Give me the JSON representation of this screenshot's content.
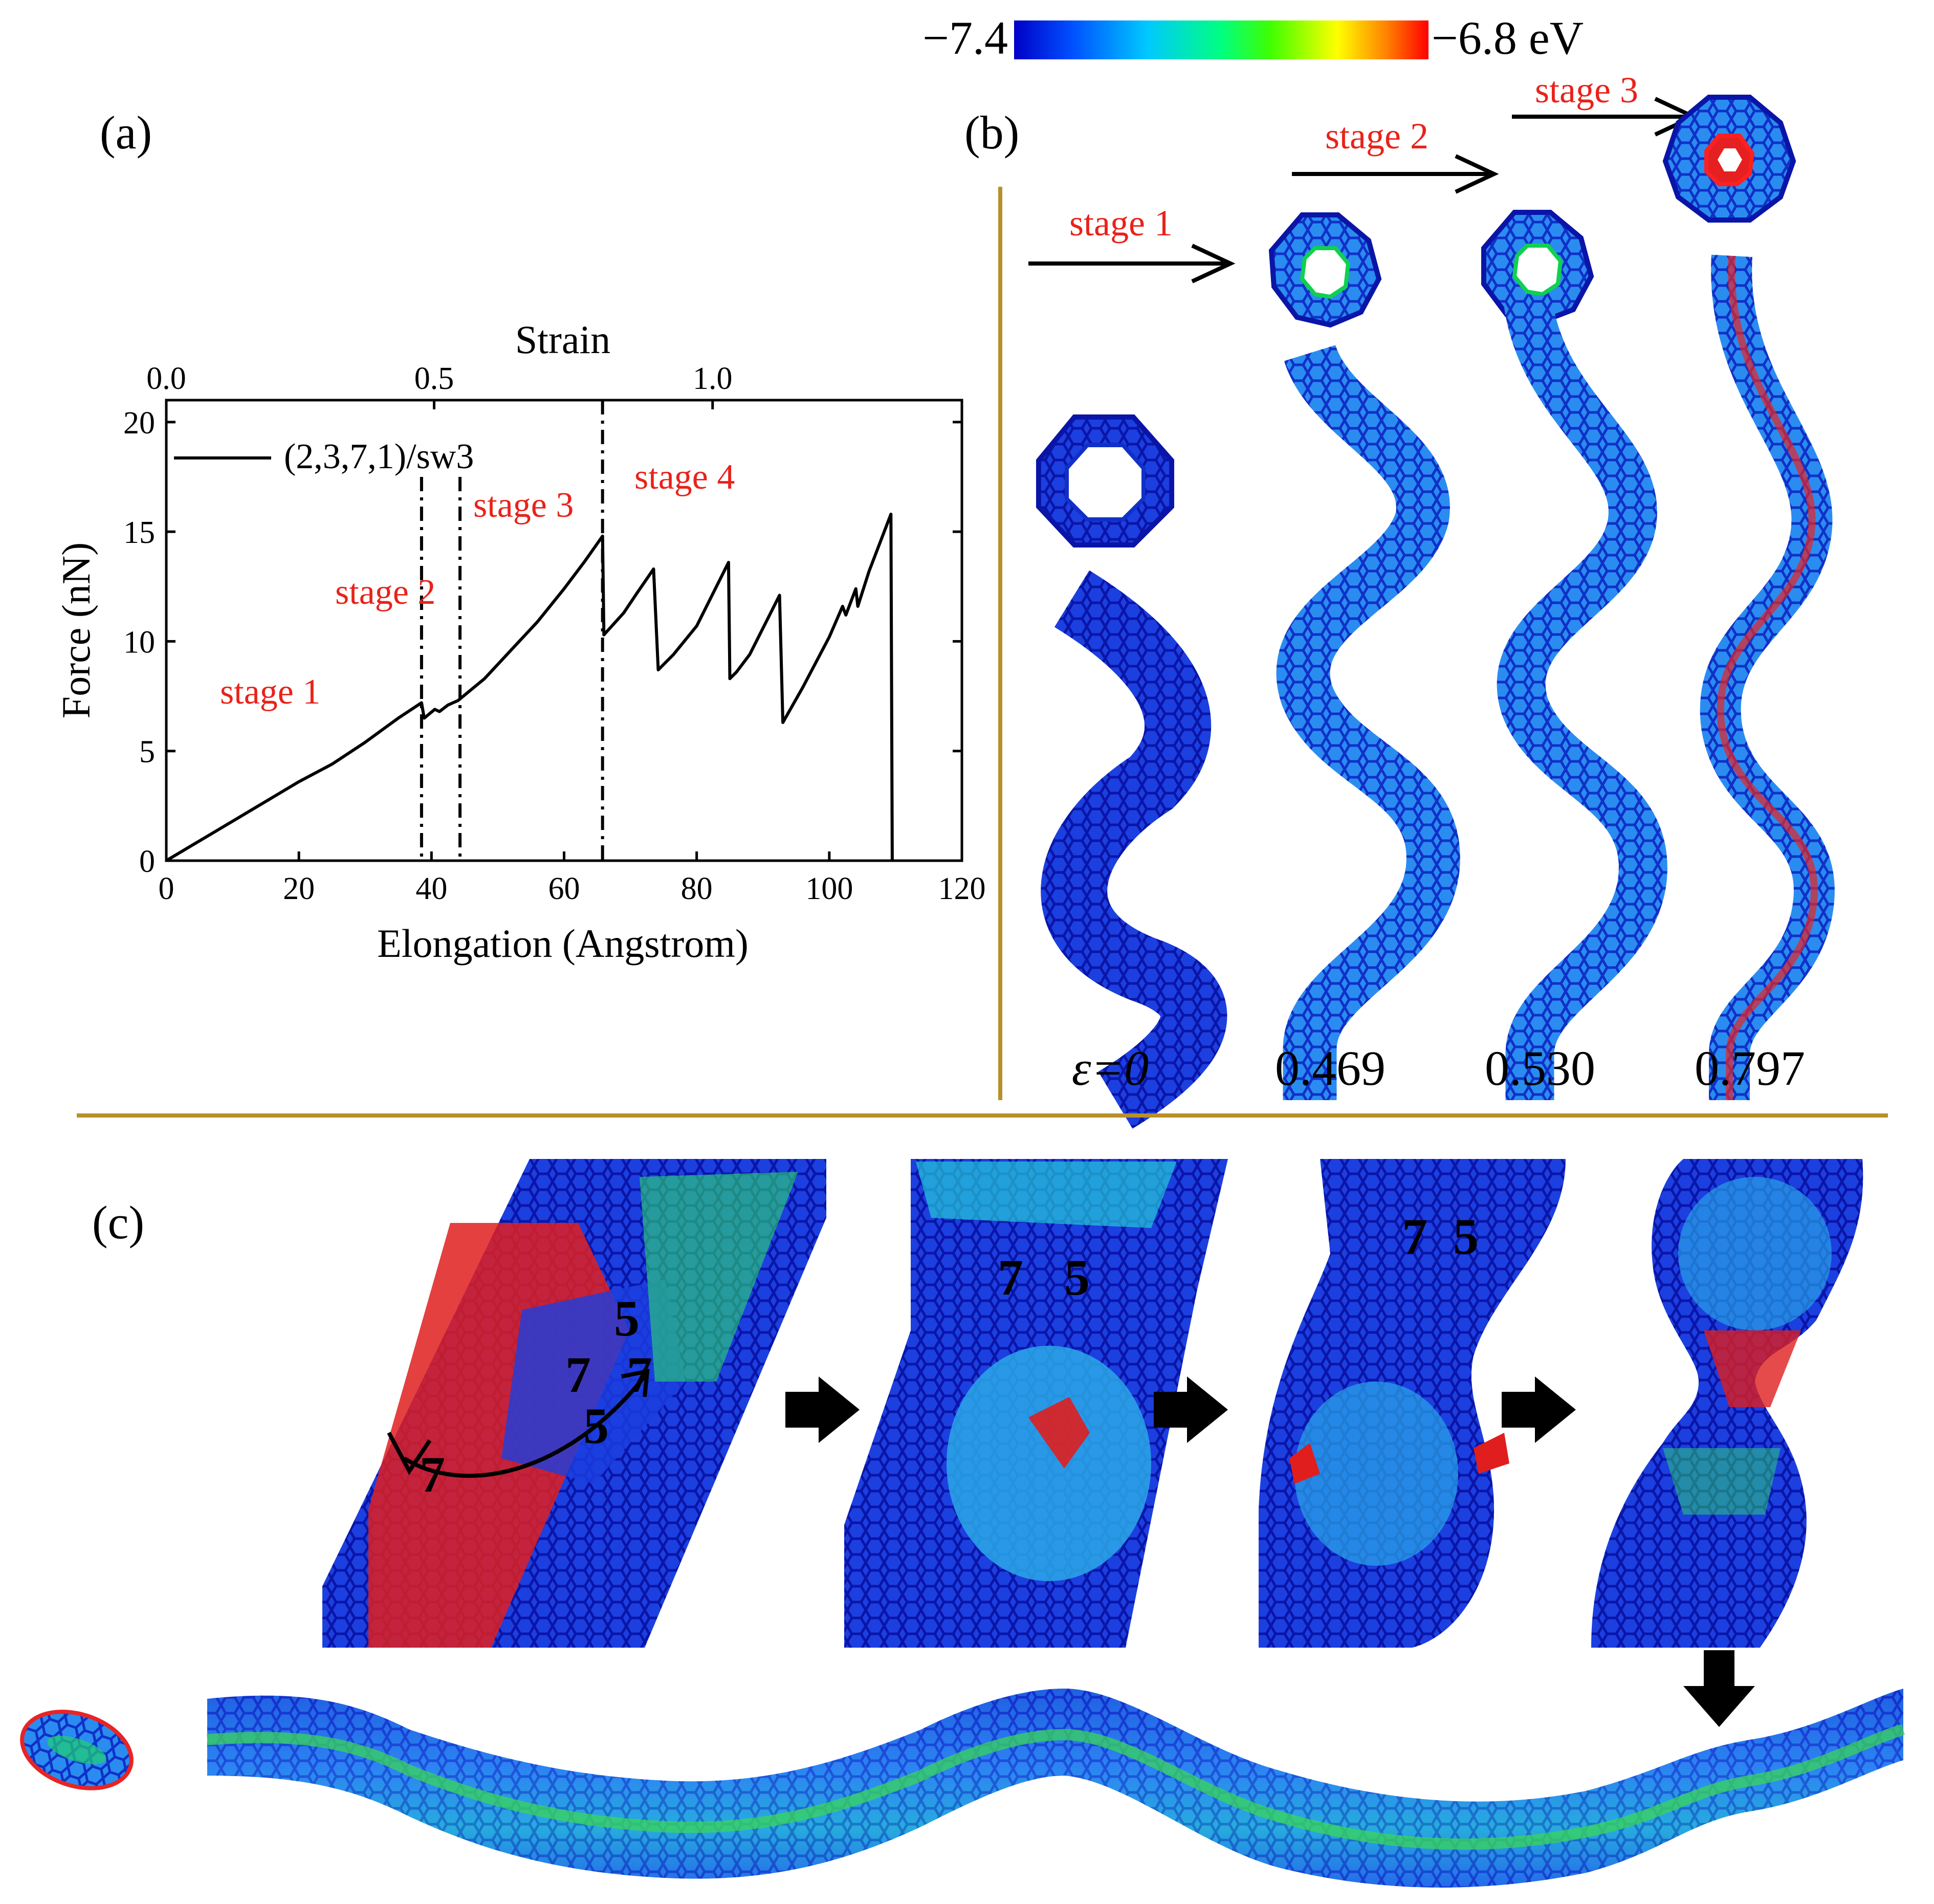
{
  "colorbar": {
    "min_label": "−7.4",
    "max_label": "−6.8 eV",
    "min_value": -7.4,
    "max_value": -6.8,
    "unit": "eV",
    "colors": [
      "#0000c8",
      "#0050ff",
      "#00c8ff",
      "#00ff80",
      "#40ff00",
      "#ffff00",
      "#ff8000",
      "#ff0000"
    ]
  },
  "panel_a": {
    "label": "(a)",
    "stage_labels": [
      "stage 1",
      "stage 2",
      "stage 3",
      "stage 4"
    ],
    "stage_color": "#e8231b"
  },
  "chart_data": {
    "type": "line",
    "title": "",
    "xlabel": "Elongation (Angstrom)",
    "ylabel": "Force (nN)",
    "top_xlabel": "Strain",
    "xlim": [
      0,
      120
    ],
    "ylim": [
      0,
      21
    ],
    "xticks": [
      0,
      20,
      40,
      60,
      80,
      100,
      120
    ],
    "yticks": [
      0,
      5,
      10,
      15,
      20
    ],
    "top_ticks": [
      {
        "label": "0.0",
        "elongation": 0
      },
      {
        "label": "0.5",
        "elongation": 40.4
      },
      {
        "label": "1.0",
        "elongation": 82.4
      }
    ],
    "legend": {
      "label": "(2,3,7,1)/sw3",
      "position": "top-left"
    },
    "stage_boundaries": [
      38.5,
      44.3,
      65.8
    ],
    "series": [
      {
        "name": "(2,3,7,1)/sw3",
        "points": [
          [
            0,
            0
          ],
          [
            5,
            0.9
          ],
          [
            10,
            1.8
          ],
          [
            15,
            2.7
          ],
          [
            20,
            3.6
          ],
          [
            25,
            4.4
          ],
          [
            30,
            5.4
          ],
          [
            35,
            6.5
          ],
          [
            38.5,
            7.2
          ],
          [
            38.9,
            6.5
          ],
          [
            40.5,
            6.9
          ],
          [
            41.2,
            6.8
          ],
          [
            42.5,
            7.1
          ],
          [
            44,
            7.3
          ],
          [
            48,
            8.3
          ],
          [
            52,
            9.6
          ],
          [
            56,
            10.9
          ],
          [
            60,
            12.4
          ],
          [
            63,
            13.6
          ],
          [
            65.8,
            14.8
          ],
          [
            66,
            10.3
          ],
          [
            69,
            11.3
          ],
          [
            71,
            12.2
          ],
          [
            73.5,
            13.3
          ],
          [
            74.2,
            8.7
          ],
          [
            76.5,
            9.4
          ],
          [
            80,
            10.7
          ],
          [
            84.8,
            13.6
          ],
          [
            85,
            8.3
          ],
          [
            86,
            8.6
          ],
          [
            88,
            9.4
          ],
          [
            92.5,
            12.1
          ],
          [
            93,
            6.3
          ],
          [
            96,
            7.9
          ],
          [
            100,
            10.2
          ],
          [
            102,
            11.6
          ],
          [
            102.5,
            11.2
          ],
          [
            104,
            12.4
          ],
          [
            104.3,
            11.6
          ],
          [
            106,
            13.2
          ],
          [
            109.3,
            15.8
          ],
          [
            109.5,
            0
          ]
        ]
      }
    ]
  },
  "panel_b": {
    "label": "(b)",
    "stage_arrows": [
      "stage 1",
      "stage 2",
      "stage 3"
    ],
    "strain_labels": [
      "ε=0",
      "0.469",
      "0.530",
      "0.797"
    ]
  },
  "panel_c": {
    "label": "(c)",
    "ring_labels": [
      "5",
      "7",
      "7",
      "5",
      "7",
      "7",
      "5",
      "7",
      "5"
    ]
  }
}
